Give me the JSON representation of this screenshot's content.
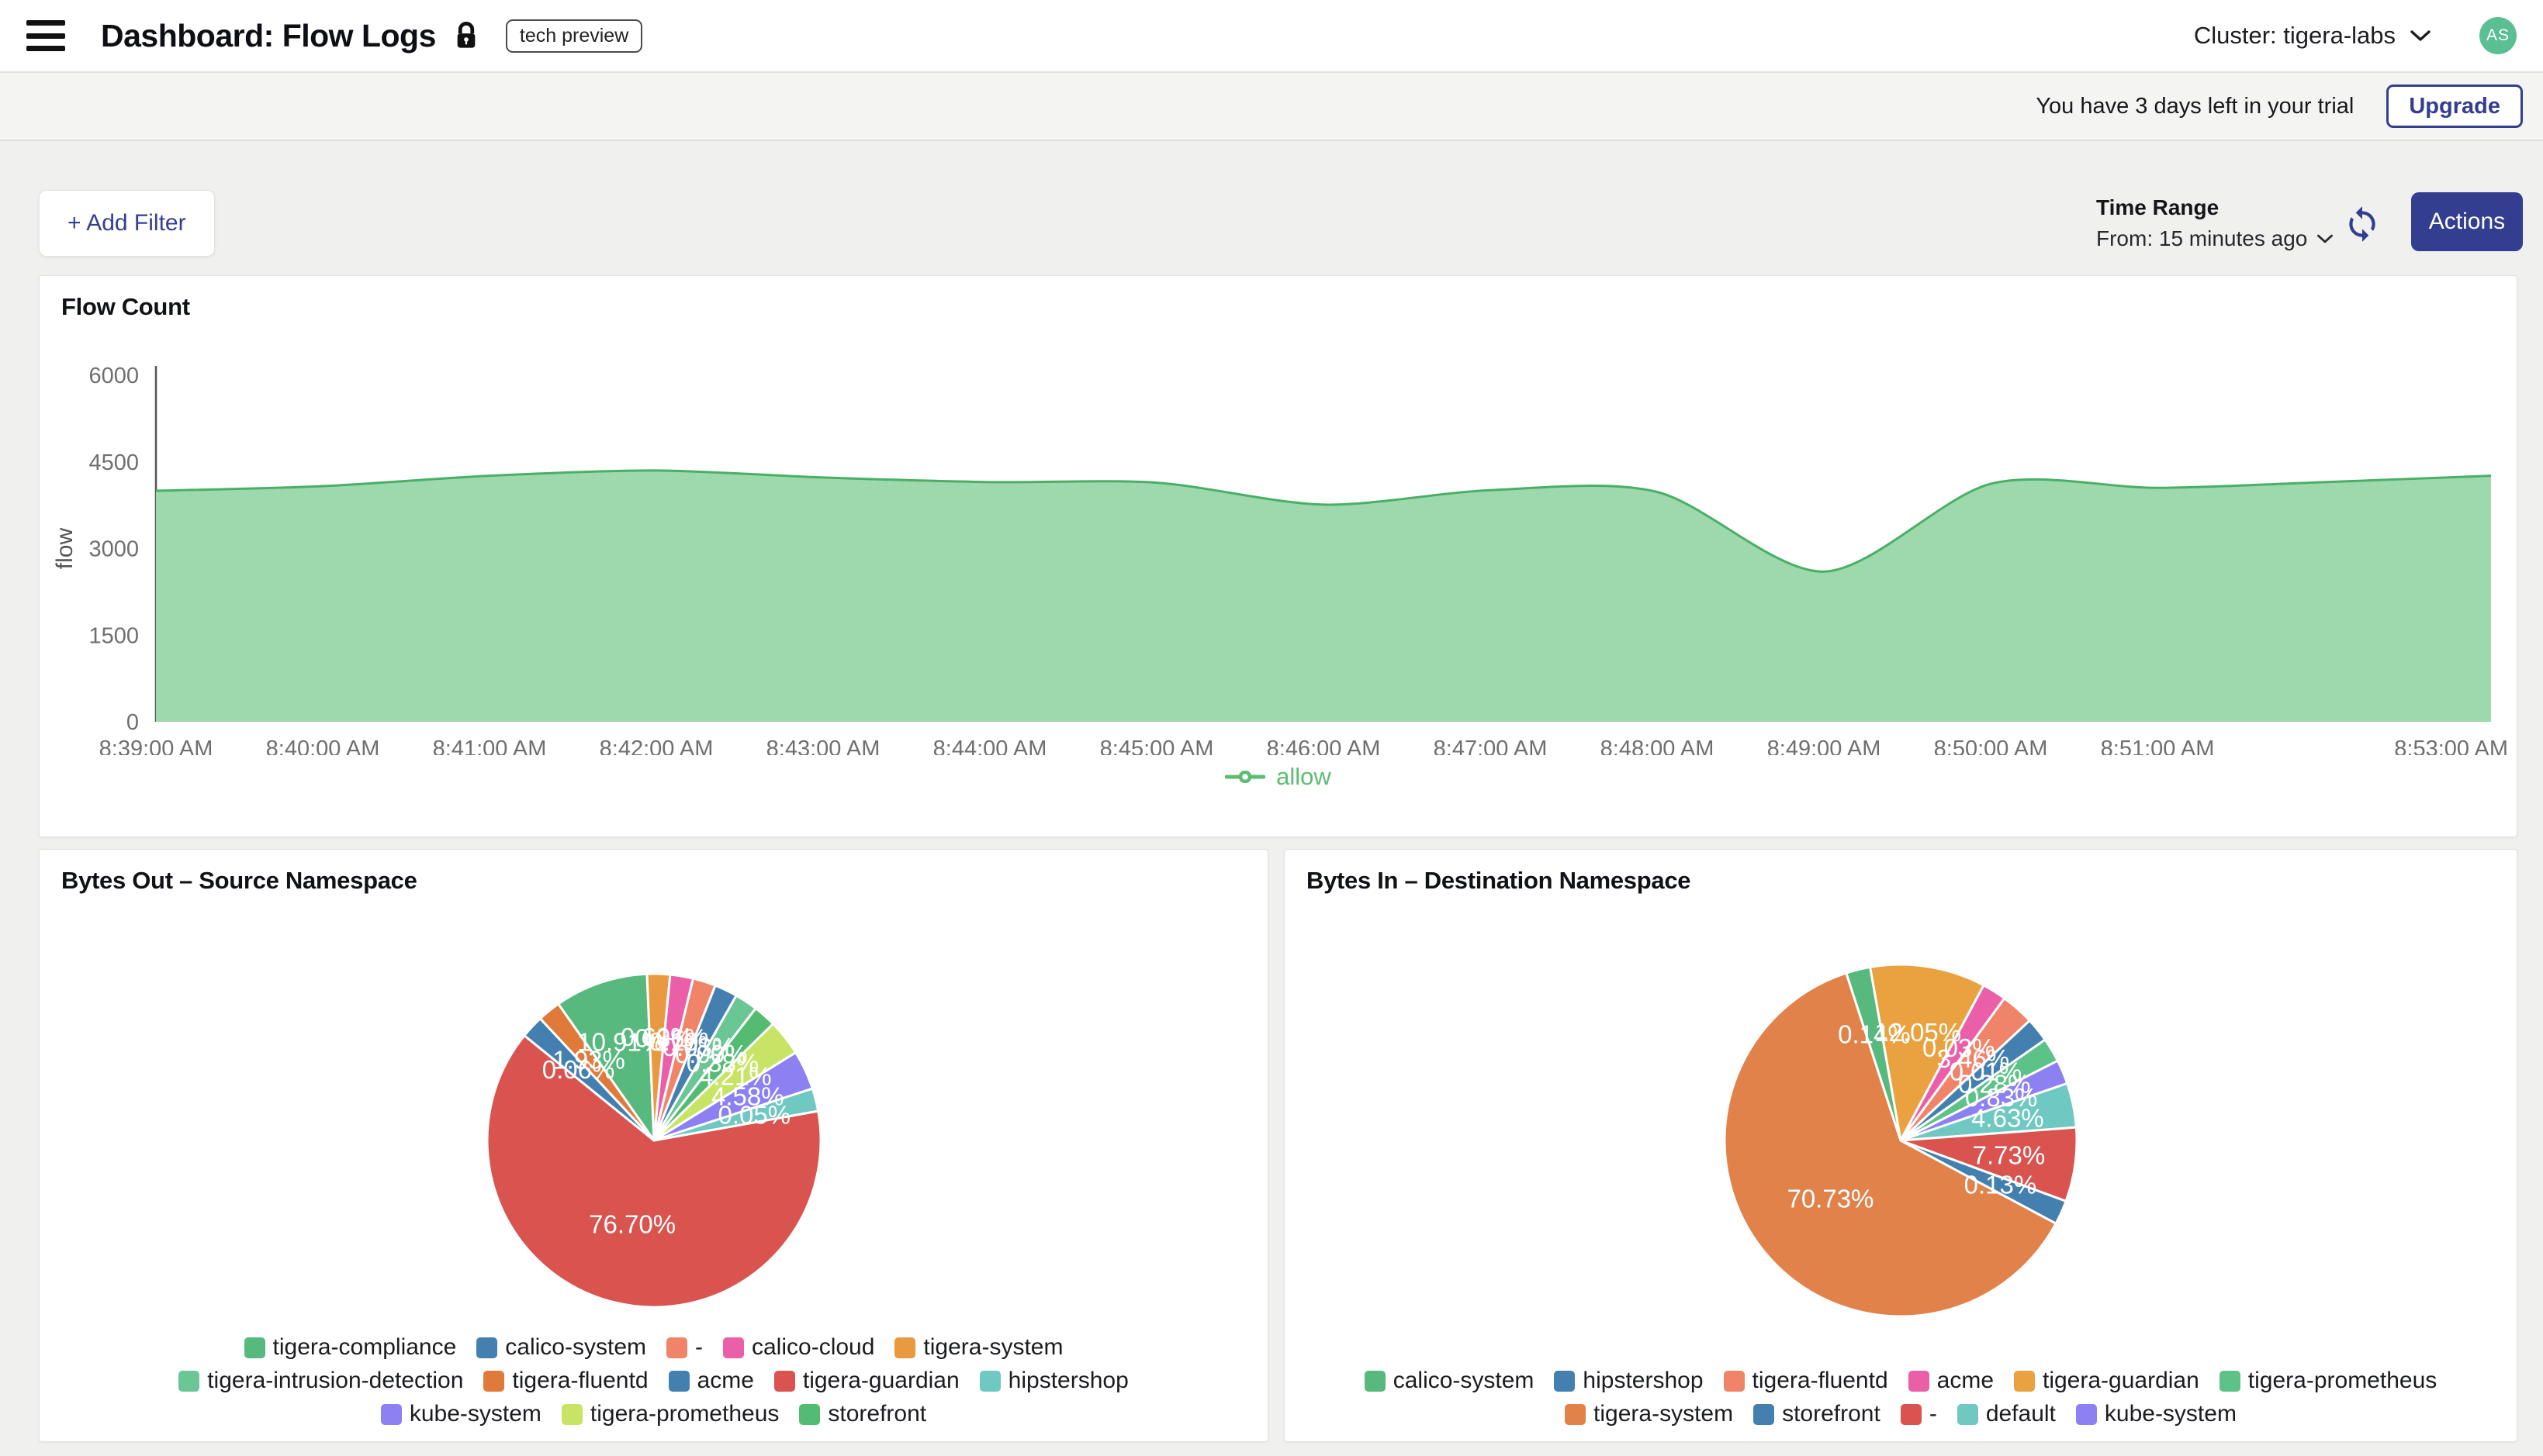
{
  "header": {
    "title": "Dashboard: Flow Logs",
    "badge": "tech preview",
    "cluster_label": "Cluster: tigera-labs",
    "avatar_initials": "AS"
  },
  "trial_banner": {
    "message": "You have 3 days left in your trial",
    "upgrade_label": "Upgrade"
  },
  "toolbar": {
    "add_filter_label": "+ Add Filter",
    "time_range_title": "Time Range",
    "time_range_value": "From: 15 minutes ago",
    "actions_label": "Actions"
  },
  "icons": [
    "hamburger-menu",
    "lock",
    "chevron-down",
    "refresh-sync",
    "line-dot-legend-marker"
  ],
  "colors": {
    "accent_navy": "#333e90",
    "avatar_green": "#5bbf94",
    "area_fill": "#9ed8ad",
    "area_stroke": "#4aaf66",
    "allow_green": "#5cbd72",
    "page_bg": "#f0f0ee",
    "panel_bg": "#ffffff"
  },
  "chart_data": [
    {
      "type": "area",
      "title": "Flow Count",
      "xlabel": "",
      "ylabel": "flow",
      "ylim": [
        0,
        6000
      ],
      "yticks": [
        0,
        1500,
        3000,
        4500,
        6000
      ],
      "x_range_minutes": [
        0,
        14
      ],
      "xticks": [
        {
          "label": "8:39:00 AM",
          "t": 0
        },
        {
          "label": "8:40:00 AM",
          "t": 1
        },
        {
          "label": "8:41:00 AM",
          "t": 2
        },
        {
          "label": "8:42:00 AM",
          "t": 3
        },
        {
          "label": "8:43:00 AM",
          "t": 4
        },
        {
          "label": "8:44:00 AM",
          "t": 5
        },
        {
          "label": "8:45:00 AM",
          "t": 6
        },
        {
          "label": "8:46:00 AM",
          "t": 7
        },
        {
          "label": "8:47:00 AM",
          "t": 8
        },
        {
          "label": "8:48:00 AM",
          "t": 9
        },
        {
          "label": "8:49:00 AM",
          "t": 10
        },
        {
          "label": "8:50:00 AM",
          "t": 11
        },
        {
          "label": "8:51:00 AM",
          "t": 12
        },
        {
          "label": "8:53:00 AM",
          "t": 14
        }
      ],
      "grid": false,
      "legend_position": "bottom",
      "series": [
        {
          "name": "allow",
          "color": "#5cbd72",
          "x": [
            0,
            1,
            2,
            3,
            4,
            5,
            6,
            7,
            8,
            9,
            10,
            11,
            12,
            13,
            14
          ],
          "values": [
            4000,
            4080,
            4260,
            4350,
            4230,
            4150,
            4140,
            3760,
            4010,
            3980,
            2600,
            4120,
            4050,
            4150,
            4260
          ]
        }
      ]
    },
    {
      "type": "pie",
      "title": "Bytes Out – Source Namespace",
      "radius": 215,
      "start_angle": -35,
      "slices": [
        {
          "name": "tigera-compliance",
          "display": "10.91%",
          "value": 10.91,
          "color": "#57b97d"
        },
        {
          "name": "tigera-system",
          "display": "0.60%",
          "value": 0.6,
          "color": "#e9993f"
        },
        {
          "name": "calico-cloud",
          "display": "0.36%",
          "value": 0.36,
          "color": "#ea5fa8"
        },
        {
          "name": "-",
          "display": "0.19%",
          "value": 0.19,
          "color": "#ef8468"
        },
        {
          "name": "calico-system",
          "display": "0.03%",
          "value": 0.03,
          "color": "#4480af"
        },
        {
          "name": "tigera-intrusion-detection",
          "display": "0.00%",
          "value": 0.0,
          "color": "#6ac795"
        },
        {
          "name": "storefront",
          "display": "0.38%",
          "value": 0.38,
          "color": "#53bb72"
        },
        {
          "name": "tigera-prometheus",
          "display": "4.21%",
          "value": 4.21,
          "color": "#c7e465"
        },
        {
          "name": "kube-system",
          "display": "4.58%",
          "value": 4.58,
          "color": "#8d80f2"
        },
        {
          "name": "hipstershop",
          "display": "0.05%",
          "value": 0.05,
          "color": "#6fc8c1"
        },
        {
          "name": "tigera-guardian",
          "display": "76.70%",
          "value": 76.7,
          "color": "#d9534f"
        },
        {
          "name": "acme",
          "display": "0.06%",
          "value": 0.06,
          "color": "#4480af"
        },
        {
          "name": "tigera-fluentd",
          "display": "1.93%",
          "value": 1.93,
          "color": "#e07a3b"
        }
      ],
      "legend_rows": [
        [
          "tigera-compliance",
          "calico-system",
          "-",
          "calico-cloud",
          "tigera-system"
        ],
        [
          "tigera-intrusion-detection",
          "tigera-fluentd",
          "acme",
          "tigera-guardian",
          "hipstershop"
        ],
        [
          "kube-system",
          "tigera-prometheus",
          "storefront"
        ]
      ]
    },
    {
      "type": "pie",
      "title": "Bytes In – Destination Namespace",
      "radius": 227,
      "start_angle": -10,
      "slices": [
        {
          "name": "tigera-guardian",
          "display": "12.05%",
          "value": 12.05,
          "color": "#e9a23f"
        },
        {
          "name": "acme",
          "display": "0.03%",
          "value": 0.03,
          "color": "#ea5fa8"
        },
        {
          "name": "tigera-fluentd",
          "display": "3.46%",
          "value": 3.46,
          "color": "#ef8468"
        },
        {
          "name": "hipstershop",
          "display": "0.01%",
          "value": 0.01,
          "color": "#4480af"
        },
        {
          "name": "tigera-prometheus",
          "display": "0.28%",
          "value": 0.28,
          "color": "#5dc288"
        },
        {
          "name": "kube-system",
          "display": "0.83%",
          "value": 0.83,
          "color": "#8d80f2"
        },
        {
          "name": "default",
          "display": "4.63%",
          "value": 4.63,
          "color": "#6fc8c1"
        },
        {
          "name": "-",
          "display": "7.73%",
          "value": 7.73,
          "color": "#d9534f"
        },
        {
          "name": "storefront",
          "display": "0.13%",
          "value": 0.13,
          "color": "#4480af"
        },
        {
          "name": "tigera-system",
          "display": "70.73%",
          "value": 70.73,
          "color": "#e1824a"
        },
        {
          "name": "calico-system",
          "display": "0.14%",
          "value": 0.14,
          "color": "#57b97d"
        }
      ],
      "legend_rows": [
        [
          "calico-system",
          "hipstershop",
          "tigera-fluentd",
          "acme",
          "tigera-guardian",
          "tigera-prometheus"
        ],
        [
          "tigera-system",
          "storefront",
          "-",
          "default",
          "kube-system"
        ]
      ]
    }
  ]
}
